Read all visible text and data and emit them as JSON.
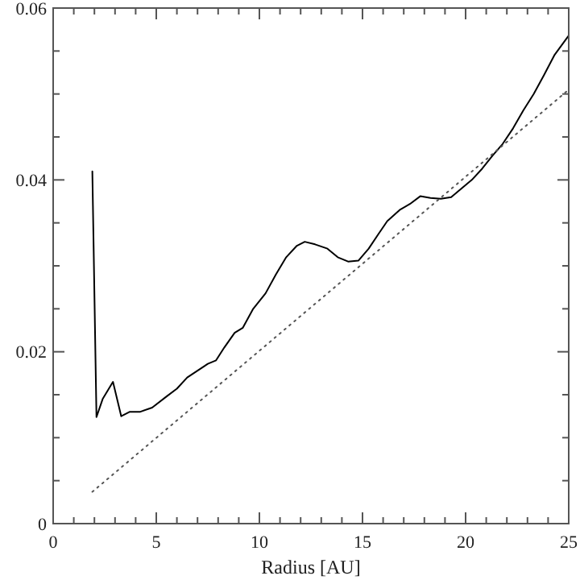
{
  "chart_data": {
    "type": "line",
    "xlabel": "Radius [AU]",
    "xlim": [
      0,
      25
    ],
    "ylim": [
      0,
      0.06
    ],
    "xticks": [
      0,
      {
        "value": 1,
        "label": null
      },
      {
        "value": 2,
        "label": null
      },
      {
        "value": 3,
        "label": null
      },
      {
        "value": 4,
        "label": null
      },
      5,
      {
        "value": 6,
        "label": null
      },
      {
        "value": 7,
        "label": null
      },
      {
        "value": 8,
        "label": null
      },
      {
        "value": 9,
        "label": null
      },
      10,
      {
        "value": 11,
        "label": null
      },
      {
        "value": 12,
        "label": null
      },
      {
        "value": 13,
        "label": null
      },
      {
        "value": 14,
        "label": null
      },
      15,
      {
        "value": 16,
        "label": null
      },
      {
        "value": 17,
        "label": null
      },
      {
        "value": 18,
        "label": null
      },
      {
        "value": 19,
        "label": null
      },
      20,
      {
        "value": 21,
        "label": null
      },
      {
        "value": 22,
        "label": null
      },
      {
        "value": 23,
        "label": null
      },
      {
        "value": 24,
        "label": null
      },
      25
    ],
    "yticks": [
      0,
      {
        "value": 0.005,
        "label": null
      },
      {
        "value": 0.01,
        "label": null
      },
      {
        "value": 0.015,
        "label": null
      },
      0.02,
      {
        "value": 0.025,
        "label": null
      },
      {
        "value": 0.03,
        "label": null
      },
      {
        "value": 0.035,
        "label": null
      },
      0.04,
      {
        "value": 0.045,
        "label": null
      },
      {
        "value": 0.05,
        "label": null
      },
      {
        "value": 0.055,
        "label": null
      },
      0.06
    ],
    "grid": false,
    "marker": "none",
    "series": [
      {
        "color": "#000000",
        "line_style": "solid",
        "x": [
          1.9,
          2.1,
          2.4,
          2.9,
          3.3,
          3.7,
          4.2,
          4.8,
          5.5,
          6.0,
          6.5,
          7.0,
          7.5,
          7.9,
          8.3,
          8.8,
          9.2,
          9.7,
          10.3,
          10.8,
          11.3,
          11.8,
          12.2,
          12.7,
          13.3,
          13.8,
          14.3,
          14.8,
          15.3,
          15.8,
          16.2,
          16.8,
          17.3,
          17.8,
          18.3,
          18.8,
          19.3,
          19.8,
          20.3,
          20.8,
          21.3,
          21.8,
          22.3,
          22.8,
          23.3,
          23.8,
          24.3,
          25.0
        ],
        "values": [
          0.041,
          0.0124,
          0.0145,
          0.0165,
          0.0125,
          0.013,
          0.013,
          0.0135,
          0.0148,
          0.0157,
          0.017,
          0.0178,
          0.0186,
          0.019,
          0.0205,
          0.0222,
          0.0228,
          0.025,
          0.0268,
          0.029,
          0.031,
          0.0323,
          0.0328,
          0.0325,
          0.032,
          0.031,
          0.0305,
          0.0306,
          0.032,
          0.0338,
          0.0352,
          0.0365,
          0.0372,
          0.0381,
          0.0379,
          0.0378,
          0.038,
          0.039,
          0.04,
          0.0413,
          0.0428,
          0.0442,
          0.046,
          0.0481,
          0.05,
          0.0522,
          0.0545,
          0.0568
        ]
      },
      {
        "color": "#555555",
        "line_style": "dotted",
        "x": [
          1.9,
          25
        ],
        "values": [
          0.0037,
          0.0505
        ]
      }
    ]
  }
}
